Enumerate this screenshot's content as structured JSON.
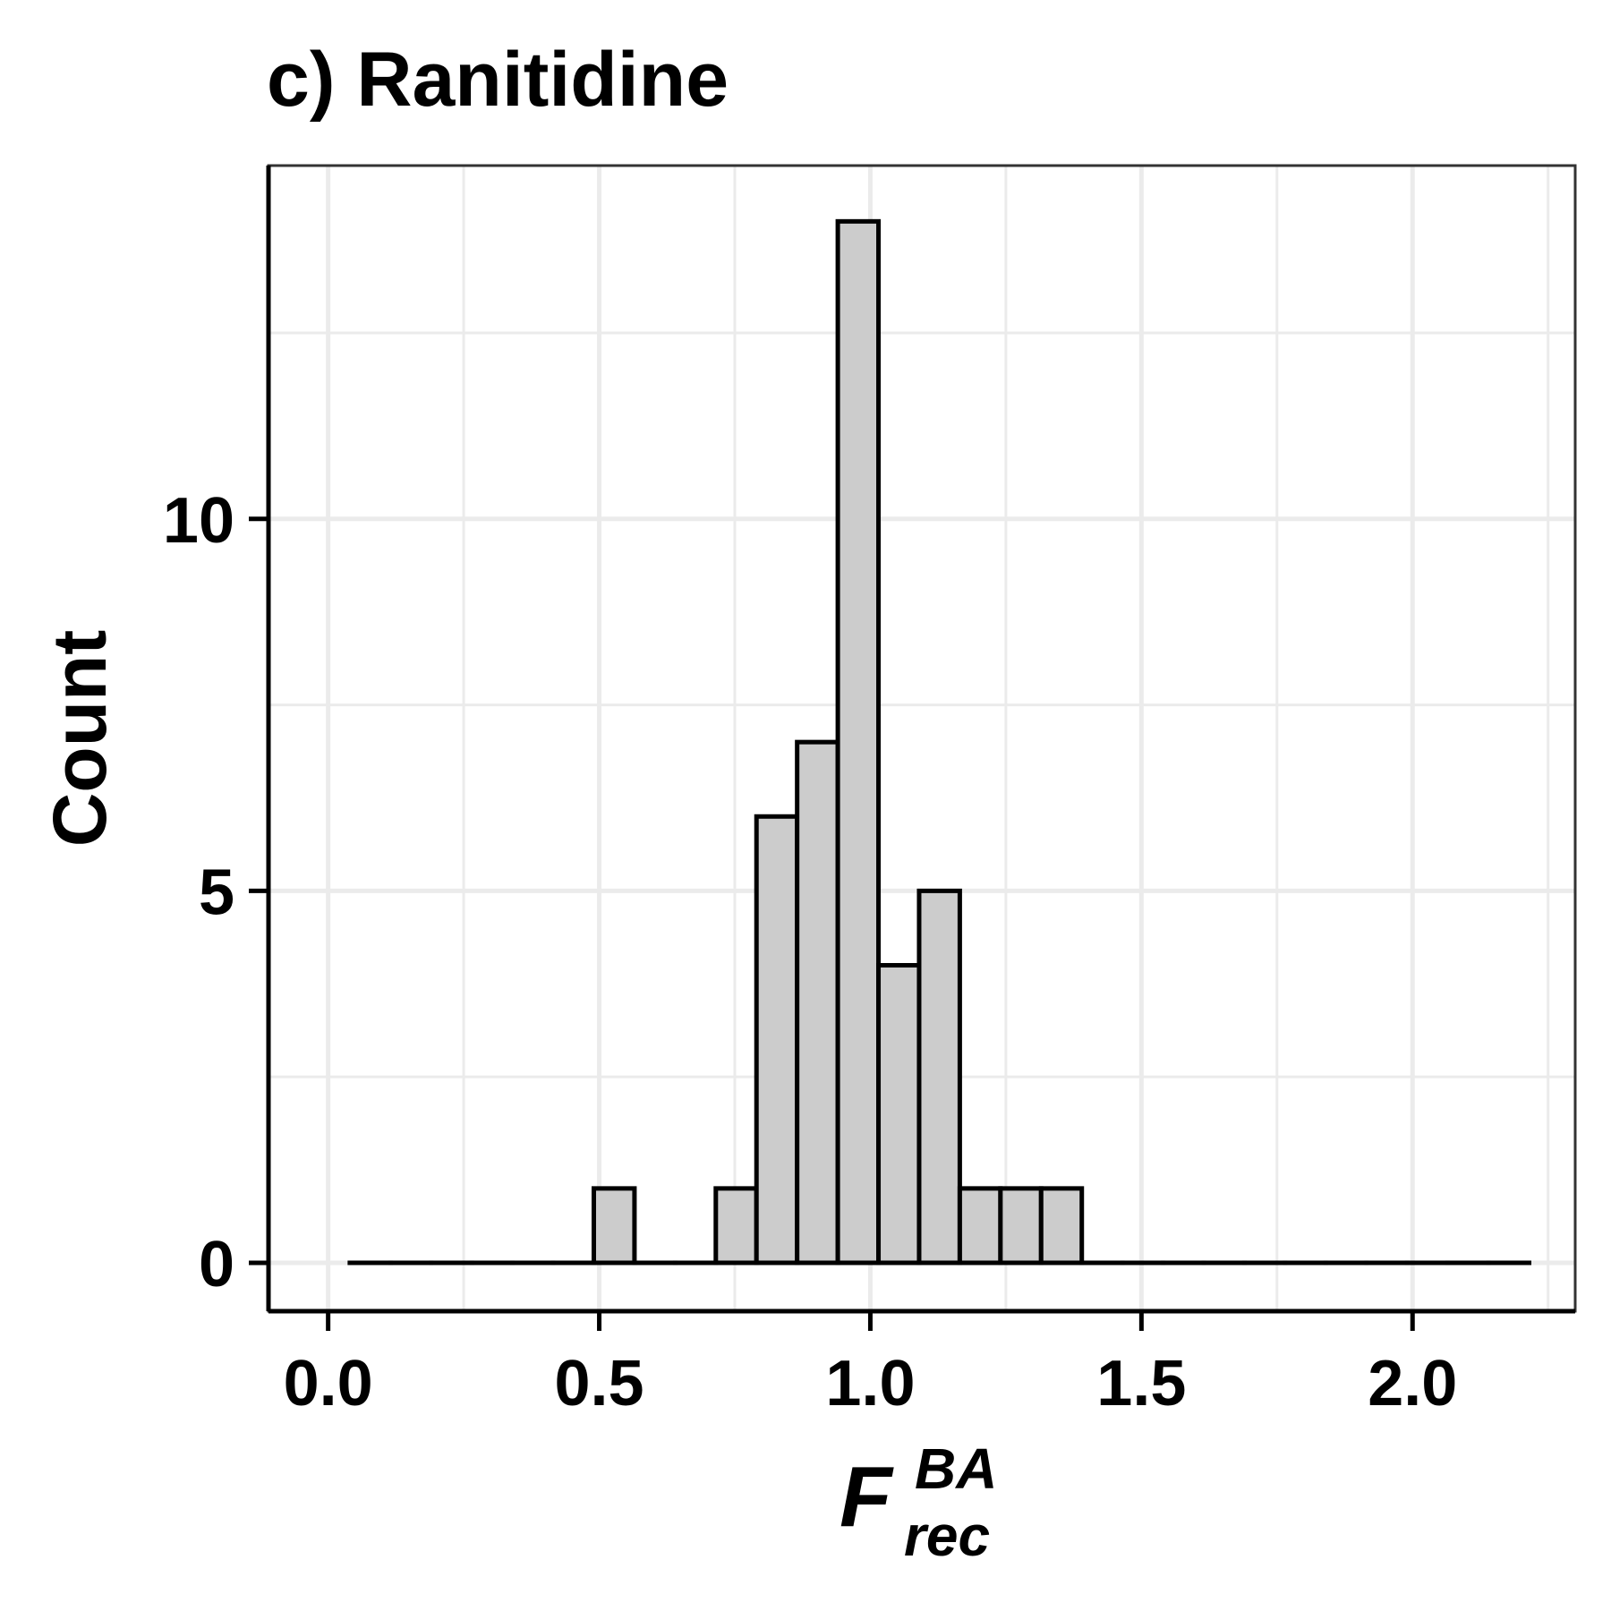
{
  "chart_data": {
    "type": "bar",
    "title": "c) Ranitidine",
    "xlabel": {
      "base": "F",
      "superscript": "BA",
      "subscript": "rec"
    },
    "ylabel": "Count",
    "xlim": [
      -0.11,
      2.3
    ],
    "ylim": [
      -0.65,
      14.75
    ],
    "x_ticks": [
      {
        "value": 0.0,
        "label": "0.0"
      },
      {
        "value": 0.5,
        "label": "0.5"
      },
      {
        "value": 1.0,
        "label": "1.0"
      },
      {
        "value": 1.5,
        "label": "1.5"
      },
      {
        "value": 2.0,
        "label": "2.0"
      }
    ],
    "y_ticks": [
      {
        "value": 0,
        "label": "0"
      },
      {
        "value": 5,
        "label": "5"
      },
      {
        "value": 10,
        "label": "10"
      }
    ],
    "bin_width": 0.075,
    "bin_start": 0.04,
    "counts": [
      0,
      0,
      0,
      0,
      0,
      0,
      1,
      0,
      0,
      1,
      6,
      7,
      14,
      4,
      5,
      1,
      1,
      1,
      0,
      0,
      0,
      0,
      0,
      0,
      0,
      0,
      0,
      0,
      0
    ],
    "bar_fill": "#cccccc",
    "bar_stroke": "#000000",
    "grid": true,
    "grid_color": "#ebebeb",
    "legend": "none"
  }
}
